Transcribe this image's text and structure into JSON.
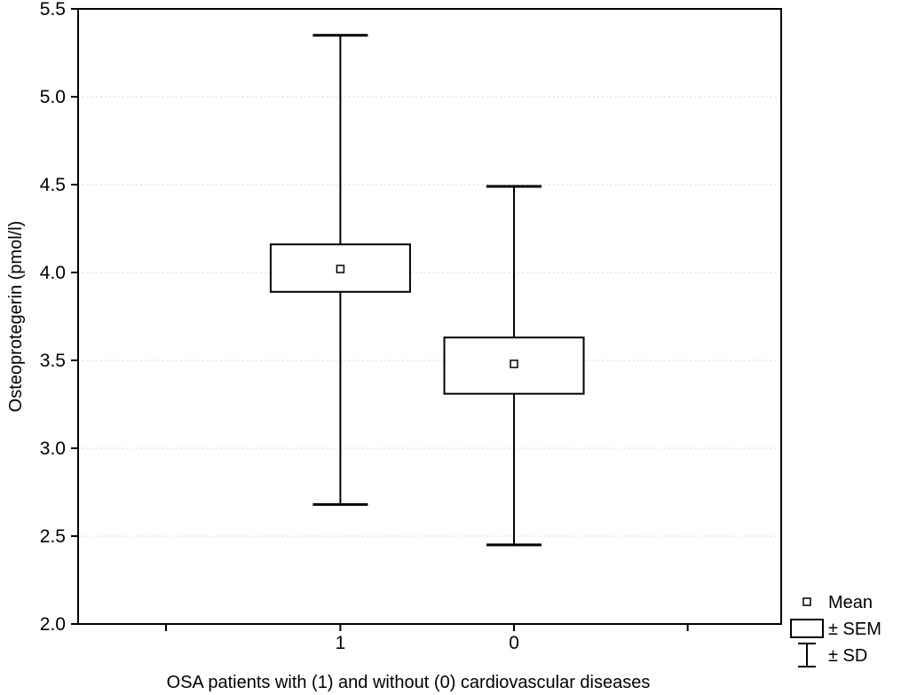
{
  "chart_data": {
    "type": "boxplot",
    "subtype": "mean-sem-sd",
    "title": "",
    "xlabel": "OSA patients with (1) and without (0) cardiovascular diseases",
    "ylabel": "Osteoprotegerin (pmol/l)",
    "ylim": [
      2.0,
      5.5
    ],
    "yticks": [
      5.5,
      5.0,
      4.5,
      4.0,
      3.5,
      3.0,
      2.5,
      2.0
    ],
    "ytick_labels": [
      "5.5",
      "5.0",
      "4.5",
      "4.0",
      "3.5",
      "3.0",
      "2.5",
      "2.0"
    ],
    "categories": [
      "1",
      "0"
    ],
    "series": [
      {
        "category": "1",
        "mean": 4.02,
        "sem_low": 3.89,
        "sem_high": 4.16,
        "sd_low": 2.68,
        "sd_high": 5.35
      },
      {
        "category": "0",
        "mean": 3.48,
        "sem_low": 3.31,
        "sem_high": 3.63,
        "sd_low": 2.45,
        "sd_high": 4.49
      }
    ],
    "grid": {
      "horizontal": true,
      "style": "dotted",
      "color": "#c9c9c9"
    },
    "legend": {
      "position": "bottom-right-outside",
      "entries": [
        {
          "symbol": "small-square",
          "label": "Mean"
        },
        {
          "symbol": "rectangle",
          "label": "± SEM"
        },
        {
          "symbol": "error-bar",
          "label": "± SD"
        }
      ]
    },
    "colors": {
      "stroke": "#000000",
      "background": "#ffffff"
    }
  }
}
